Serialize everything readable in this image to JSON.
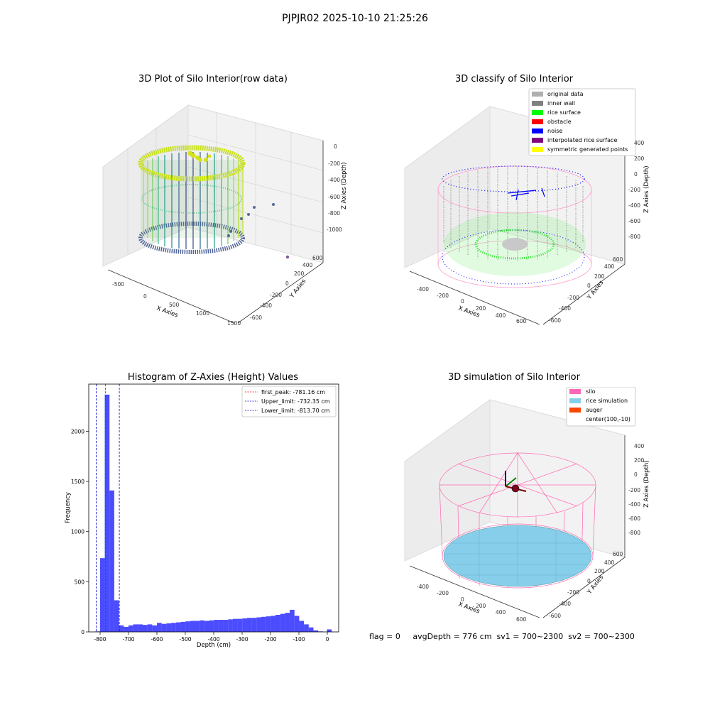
{
  "suptitle": "PJPJR02 2025-10-10 21:25:26",
  "footer": "flag = 0     avgDepth = 776 cm  sv1 = 700~2300  sv2 = 700~2300",
  "chart_data": [
    {
      "type": "scatter3d",
      "title": "3D Plot of Silo Interior(row data)",
      "xlabel": "X Axies",
      "ylabel": "Y Axies",
      "zlabel": "Z Axies (Depth)",
      "x_ticks": [
        "-500",
        "0",
        "500",
        "1000",
        "1500"
      ],
      "y_ticks": [
        "-600",
        "-400",
        "-200",
        "0",
        "200",
        "400",
        "600"
      ],
      "z_ticks": [
        "-1000",
        "-800",
        "-600",
        "-400",
        "-200",
        "0"
      ],
      "colormap": "viridis"
    },
    {
      "type": "scatter3d",
      "title": "3D classify of Silo Interior",
      "xlabel": "X Axies",
      "ylabel": "Y Axies",
      "zlabel": "Z Axies (Depth)",
      "x_ticks": [
        "-400",
        "-200",
        "0",
        "200",
        "400",
        "600"
      ],
      "y_ticks": [
        "-600",
        "-400",
        "-200",
        "0",
        "200",
        "400",
        "600"
      ],
      "z_ticks": [
        "-800",
        "-600",
        "-400",
        "-200",
        "0",
        "200",
        "400"
      ],
      "legend": [
        {
          "name": "original data",
          "color": "#b0b0b0"
        },
        {
          "name": "inner wall",
          "color": "#808080"
        },
        {
          "name": "rice surface",
          "color": "#00ff00"
        },
        {
          "name": "obstacle",
          "color": "#ff0000"
        },
        {
          "name": "noise",
          "color": "#0000ff"
        },
        {
          "name": "interpolated rice surface",
          "color": "#800080"
        },
        {
          "name": "symmetric generated points",
          "color": "#ffff00"
        }
      ],
      "legend_position": "top-right"
    },
    {
      "type": "bar",
      "title": "Histogram of Z-Axies (Height) Values",
      "xlabel": "Depth (cm)",
      "ylabel": "Frequency",
      "xlim": [
        -840,
        40
      ],
      "ylim": [
        0,
        2470
      ],
      "x_ticks": [
        -800,
        -700,
        -600,
        -500,
        -400,
        -300,
        -200,
        -100,
        0
      ],
      "y_ticks": [
        0,
        500,
        1000,
        1500,
        2000
      ],
      "bin_width": 16.7,
      "bin_starts": [
        -817,
        -800.3,
        -783.6,
        -766.9,
        -750.2,
        -733.5,
        -716.8,
        -700.1,
        -683.4,
        -666.7,
        -650,
        -633.3,
        -616.6,
        -599.9,
        -583.2,
        -566.5,
        -549.8,
        -533.1,
        -516.4,
        -499.7,
        -483,
        -466.3,
        -449.6,
        -432.9,
        -416.2,
        -399.5,
        -382.8,
        -366.1,
        -349.4,
        -332.7,
        -316,
        -299.3,
        -282.6,
        -265.9,
        -249.2,
        -232.5,
        -215.8,
        -199.1,
        -182.4,
        -165.7,
        -149,
        -132.3,
        -115.6,
        -98.9,
        -82.2,
        -65.5,
        -48.8,
        -32.1,
        -15.4,
        -1.5
      ],
      "frequencies": [
        5,
        735,
        2365,
        1410,
        315,
        65,
        50,
        65,
        75,
        75,
        70,
        75,
        65,
        90,
        80,
        85,
        90,
        95,
        100,
        105,
        110,
        110,
        115,
        110,
        115,
        120,
        120,
        120,
        125,
        130,
        130,
        135,
        140,
        140,
        145,
        150,
        155,
        160,
        170,
        180,
        190,
        220,
        160,
        110,
        75,
        45,
        15,
        5,
        0,
        25
      ],
      "bar_color": "#0000ff",
      "vlines": [
        {
          "label": "first_peak: -781.16 cm",
          "x": -781.16,
          "color": "#ff0000"
        },
        {
          "label": "Upper_limit: -732.35 cm",
          "x": -732.35,
          "color": "#0000cc"
        },
        {
          "label": "Lower_limit: -813.70 cm",
          "x": -813.7,
          "color": "#0000cc"
        }
      ],
      "legend_position": "top-right"
    },
    {
      "type": "surface3d",
      "title": "3D simulation of Silo Interior",
      "xlabel": "X Axies",
      "ylabel": "Y Axies",
      "zlabel": "Z Axies (Depth)",
      "x_ticks": [
        "-400",
        "-200",
        "0",
        "200",
        "400",
        "600"
      ],
      "y_ticks": [
        "-600",
        "-400",
        "-200",
        "0",
        "200",
        "400",
        "600"
      ],
      "z_ticks": [
        "-800",
        "-600",
        "-400",
        "-200",
        "0",
        "200",
        "400"
      ],
      "legend": [
        {
          "name": "silo",
          "color": "#ff69b4"
        },
        {
          "name": "rice simulation",
          "color": "#87ceeb"
        },
        {
          "name": "auger",
          "color": "#ff4500"
        },
        {
          "name": "center(100,-10)",
          "color": ""
        }
      ],
      "legend_position": "top-right"
    }
  ]
}
